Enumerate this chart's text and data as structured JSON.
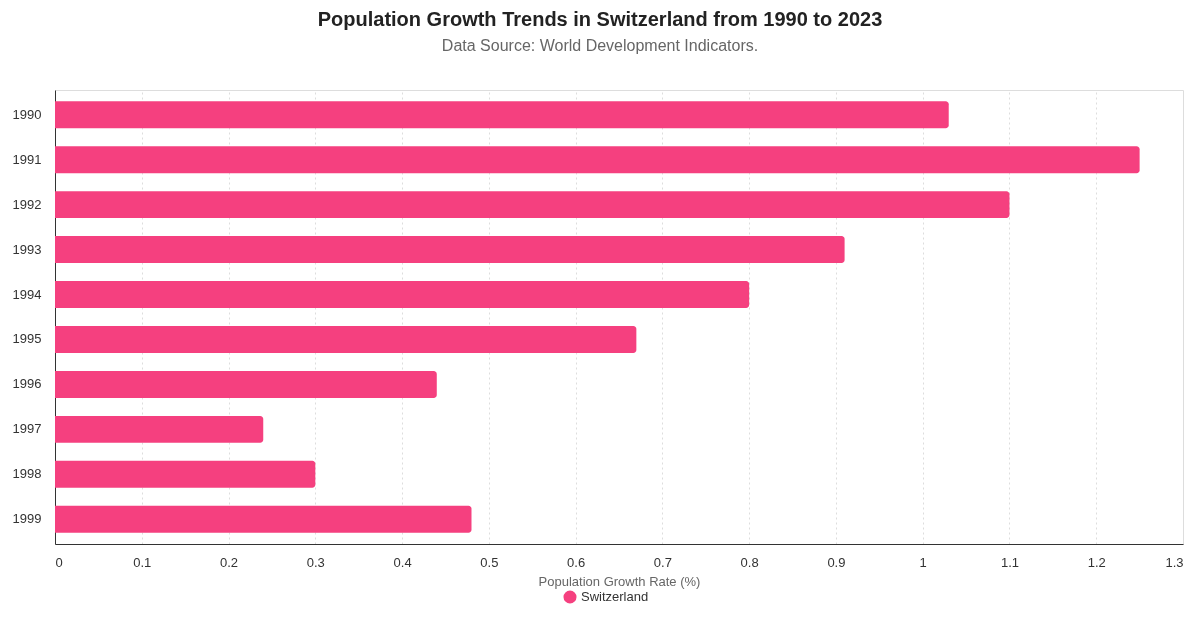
{
  "chart_data": {
    "type": "bar",
    "orientation": "horizontal",
    "title": "Population Growth Trends in Switzerland from 1990 to 2023",
    "subtitle": "Data Source: World Development Indicators.",
    "xlabel": "Population Growth Rate (%)",
    "categories": [
      "1990",
      "1991",
      "1992",
      "1993",
      "1994",
      "1995",
      "1996",
      "1997",
      "1998",
      "1999"
    ],
    "series": [
      {
        "name": "Switzerland",
        "color": "#f5407f",
        "values": [
          1.03,
          1.25,
          1.1,
          0.91,
          0.8,
          0.67,
          0.44,
          0.24,
          0.3,
          0.48
        ]
      }
    ],
    "xlim": [
      0,
      1.3
    ],
    "xticks": [
      0,
      0.1,
      0.2,
      0.3,
      0.4,
      0.5,
      0.6,
      0.7,
      0.8,
      0.9,
      1,
      1.1,
      1.2,
      1.3
    ],
    "grid": "x",
    "legend": "bottom"
  }
}
